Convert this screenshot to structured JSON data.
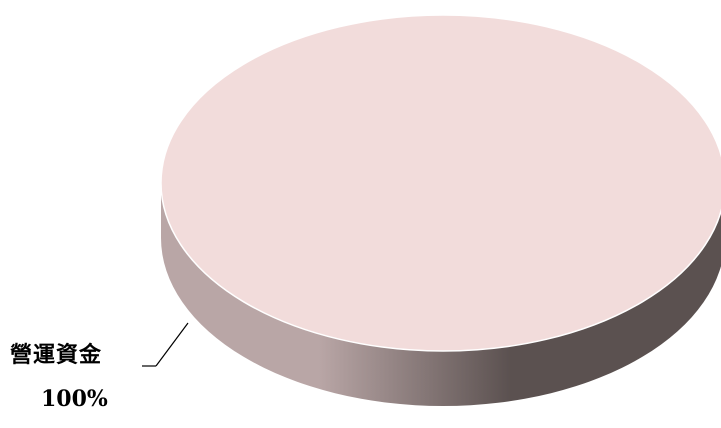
{
  "chart_data": {
    "type": "pie",
    "title": "",
    "categories": [
      "營運資金"
    ],
    "values": [
      100
    ],
    "data_labels": [
      {
        "category": "營運資金",
        "percent_text": "100%"
      }
    ],
    "style": "3d",
    "legend": "none",
    "colors": {
      "slice_top": "#F2DCDB",
      "slice_side_light": "#B9A6A6",
      "slice_side_dark": "#5B5150"
    }
  }
}
